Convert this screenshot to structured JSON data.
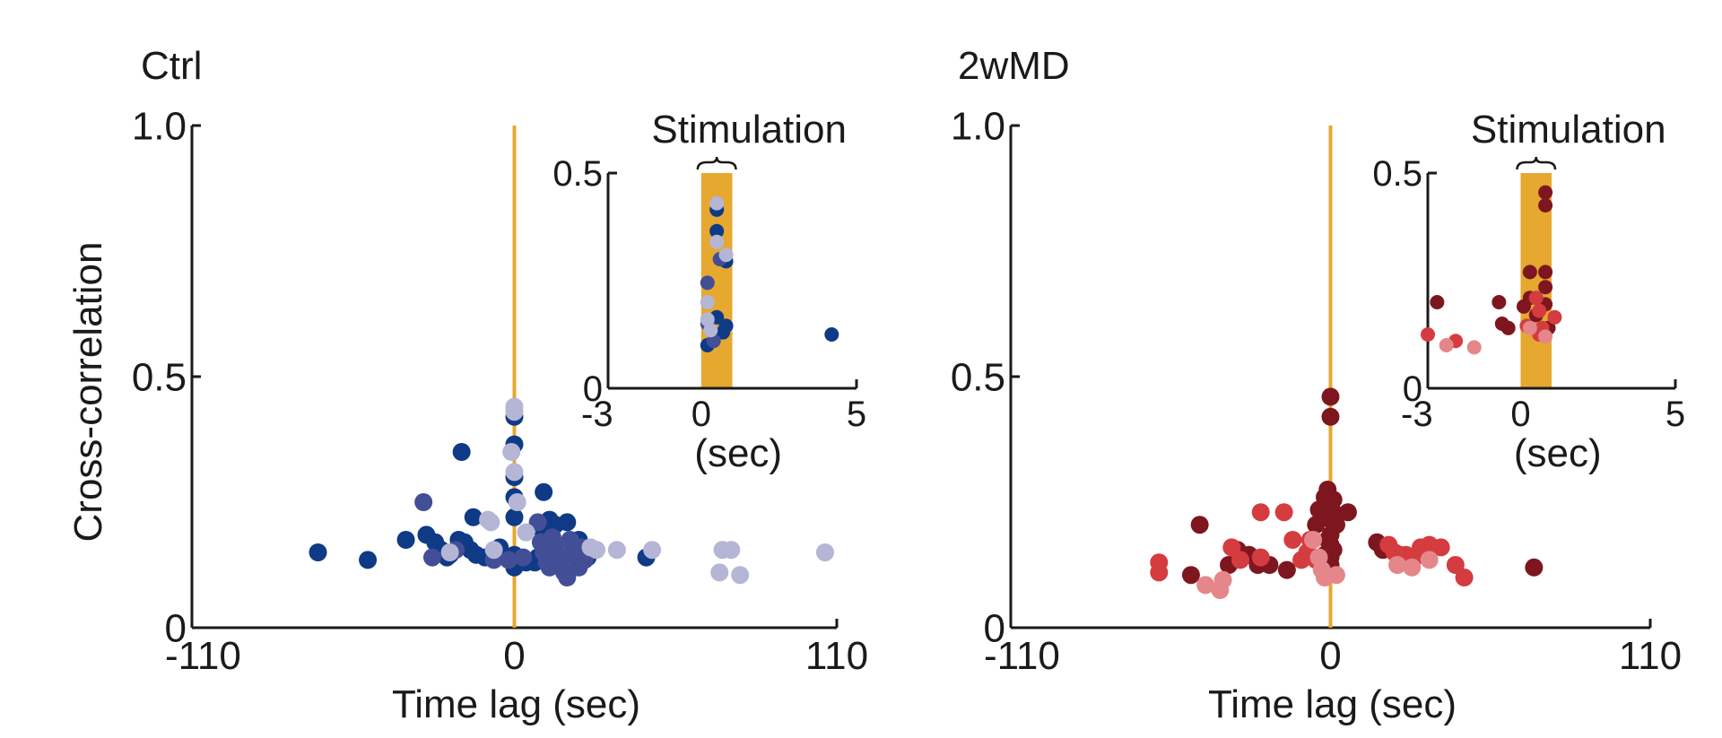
{
  "colors": {
    "stim": "#E6A82E",
    "axis": "#1a1a1a",
    "ctrl_dark": "#0E3A86",
    "ctrl_mid": "#424E96",
    "ctrl_light": "#B5B5D6",
    "md_dark": "#7E1620",
    "md_mid": "#D53C40",
    "md_light": "#E5878A"
  },
  "chart_data": [
    {
      "type": "scatter",
      "title": "Ctrl",
      "xlabel": "Time lag (sec)",
      "ylabel": "Cross-correlation",
      "xlim": [
        -110,
        110
      ],
      "ylim": [
        0,
        1.0
      ],
      "xticks": [
        "-110",
        "0",
        "110"
      ],
      "yticks": [
        "0",
        "0.5",
        "1.0"
      ],
      "stim_line_x": 0,
      "series": [
        {
          "name": "dark",
          "color_key": "ctrl_dark",
          "points": [
            [
              -67,
              0.15
            ],
            [
              -50,
              0.135
            ],
            [
              -37,
              0.175
            ],
            [
              -30,
              0.185
            ],
            [
              -27,
              0.17
            ],
            [
              -25,
              0.155
            ],
            [
              -23,
              0.14
            ],
            [
              -22,
              0.145
            ],
            [
              -19,
              0.175
            ],
            [
              -17,
              0.17
            ],
            [
              -15,
              0.155
            ],
            [
              -13,
              0.145
            ],
            [
              -10,
              0.14
            ],
            [
              -5,
              0.16
            ],
            [
              -18,
              0.35
            ],
            [
              -14,
              0.22
            ],
            [
              0,
              0.42
            ],
            [
              0,
              0.365
            ],
            [
              0,
              0.3
            ],
            [
              0,
              0.26
            ],
            [
              0,
              0.22
            ],
            [
              0,
              0.145
            ],
            [
              0,
              0.13
            ],
            [
              0,
              0.12
            ],
            [
              2,
              0.135
            ],
            [
              4,
              0.13
            ],
            [
              7,
              0.13
            ],
            [
              8,
              0.14
            ],
            [
              10,
              0.27
            ],
            [
              10,
              0.185
            ],
            [
              12,
              0.215
            ],
            [
              14,
              0.205
            ],
            [
              18,
              0.21
            ],
            [
              22,
              0.175
            ],
            [
              25,
              0.14
            ],
            [
              45,
              0.14
            ]
          ]
        },
        {
          "name": "mid",
          "color_key": "ctrl_mid",
          "points": [
            [
              -31,
              0.25
            ],
            [
              -28,
              0.14
            ],
            [
              -20,
              0.155
            ],
            [
              -7,
              0.135
            ],
            [
              -2,
              0.135
            ],
            [
              3,
              0.14
            ],
            [
              8,
              0.21
            ],
            [
              9,
              0.17
            ],
            [
              10,
              0.15
            ],
            [
              11,
              0.13
            ],
            [
              12,
              0.12
            ],
            [
              13,
              0.18
            ],
            [
              14,
              0.16
            ],
            [
              15,
              0.14
            ],
            [
              16,
              0.125
            ],
            [
              17,
              0.11
            ],
            [
              18,
              0.1
            ],
            [
              19,
              0.175
            ],
            [
              20,
              0.155
            ],
            [
              21,
              0.14
            ],
            [
              22,
              0.12
            ],
            [
              23,
              0.16
            ],
            [
              24,
              0.135
            ]
          ]
        },
        {
          "name": "light",
          "color_key": "ctrl_light",
          "points": [
            [
              0,
              0.44
            ],
            [
              0,
              0.43
            ],
            [
              -1,
              0.35
            ],
            [
              0,
              0.31
            ],
            [
              1,
              0.25
            ],
            [
              -9,
              0.215
            ],
            [
              -8,
              0.21
            ],
            [
              -22,
              0.15
            ],
            [
              -7,
              0.155
            ],
            [
              4,
              0.19
            ],
            [
              26,
              0.16
            ],
            [
              28,
              0.155
            ],
            [
              35,
              0.155
            ],
            [
              47,
              0.155
            ],
            [
              71,
              0.155
            ],
            [
              74,
              0.155
            ],
            [
              106,
              0.15
            ],
            [
              70,
              0.11
            ],
            [
              77,
              0.105
            ]
          ]
        }
      ],
      "inset": {
        "title": "Stimulation",
        "xlabel": "(sec)",
        "xlim": [
          -3,
          5
        ],
        "ylim": [
          0,
          0.5
        ],
        "xticks": [
          "-3",
          "0",
          "5"
        ],
        "yticks": [
          "0",
          "0.5"
        ],
        "stim_window": [
          0,
          1
        ],
        "series": [
          {
            "name": "dark",
            "color_key": "ctrl_dark",
            "points": [
              [
                0.5,
                0.415
              ],
              [
                0.5,
                0.365
              ],
              [
                0.8,
                0.295
              ],
              [
                0.5,
                0.165
              ],
              [
                0.7,
                0.13
              ],
              [
                0.8,
                0.145
              ],
              [
                0.2,
                0.1
              ],
              [
                4.2,
                0.125
              ]
            ]
          },
          {
            "name": "mid",
            "color_key": "ctrl_mid",
            "points": [
              [
                0.2,
                0.245
              ],
              [
                0.6,
                0.3
              ],
              [
                0.2,
                0.15
              ],
              [
                0.4,
                0.11
              ]
            ]
          },
          {
            "name": "light",
            "color_key": "ctrl_light",
            "points": [
              [
                0.5,
                0.43
              ],
              [
                0.5,
                0.34
              ],
              [
                0.8,
                0.31
              ],
              [
                0.2,
                0.2
              ],
              [
                0.2,
                0.16
              ],
              [
                0.3,
                0.135
              ]
            ]
          }
        ]
      }
    },
    {
      "type": "scatter",
      "title": "2wMD",
      "xlabel": "Time lag (sec)",
      "ylabel": "",
      "xlim": [
        -110,
        110
      ],
      "ylim": [
        0,
        1.0
      ],
      "xticks": [
        "-110",
        "0",
        "110"
      ],
      "yticks": [
        "0",
        "0.5",
        "1.0"
      ],
      "stim_line_x": 0,
      "series": [
        {
          "name": "dark",
          "color_key": "md_dark",
          "points": [
            [
              0,
              0.46
            ],
            [
              0,
              0.42
            ],
            [
              -1,
              0.275
            ],
            [
              -2,
              0.26
            ],
            [
              1,
              0.255
            ],
            [
              -4,
              0.235
            ],
            [
              1,
              0.23
            ],
            [
              -1,
              0.225
            ],
            [
              0,
              0.215
            ],
            [
              2,
              0.205
            ],
            [
              -5,
              0.205
            ],
            [
              6,
              0.23
            ],
            [
              0,
              0.185
            ],
            [
              -1,
              0.175
            ],
            [
              0,
              0.165
            ],
            [
              1,
              0.155
            ],
            [
              -2,
              0.145
            ],
            [
              0,
              0.14
            ],
            [
              -1,
              0.135
            ],
            [
              0,
              0.125
            ],
            [
              -45,
              0.205
            ],
            [
              -32,
              0.155
            ],
            [
              -28,
              0.145
            ],
            [
              -21,
              0.125
            ],
            [
              -15,
              0.115
            ],
            [
              -25,
              0.125
            ],
            [
              -35,
              0.125
            ],
            [
              -48,
              0.105
            ],
            [
              16,
              0.17
            ],
            [
              18,
              0.155
            ],
            [
              70,
              0.12
            ]
          ]
        },
        {
          "name": "mid",
          "color_key": "md_mid",
          "points": [
            [
              -59,
              0.13
            ],
            [
              -59,
              0.11
            ],
            [
              -34,
              0.16
            ],
            [
              -31,
              0.135
            ],
            [
              -24,
              0.14
            ],
            [
              -13,
              0.175
            ],
            [
              -10,
              0.135
            ],
            [
              -8,
              0.15
            ],
            [
              -5,
              0.135
            ],
            [
              -24,
              0.23
            ],
            [
              -16,
              0.23
            ],
            [
              -7,
              0.175
            ],
            [
              20,
              0.165
            ],
            [
              22,
              0.15
            ],
            [
              24,
              0.145
            ],
            [
              26,
              0.145
            ],
            [
              29,
              0.14
            ],
            [
              31,
              0.16
            ],
            [
              34,
              0.165
            ],
            [
              38,
              0.16
            ],
            [
              43,
              0.125
            ],
            [
              46,
              0.1
            ]
          ]
        },
        {
          "name": "light",
          "color_key": "md_light",
          "points": [
            [
              -38,
              0.075
            ],
            [
              -43,
              0.085
            ],
            [
              -37,
              0.095
            ],
            [
              -6,
              0.175
            ],
            [
              -4,
              0.14
            ],
            [
              -3,
              0.115
            ],
            [
              -2,
              0.1
            ],
            [
              2,
              0.105
            ],
            [
              23,
              0.125
            ],
            [
              34,
              0.135
            ],
            [
              28,
              0.12
            ]
          ]
        }
      ],
      "inset": {
        "title": "Stimulation",
        "xlabel": "(sec)",
        "xlim": [
          -3,
          5
        ],
        "ylim": [
          0,
          0.5
        ],
        "xticks": [
          "-3",
          "0",
          "5"
        ],
        "yticks": [
          "0",
          "0.5"
        ],
        "stim_window": [
          0,
          1
        ],
        "series": [
          {
            "name": "dark",
            "color_key": "md_dark",
            "points": [
              [
                0.8,
                0.455
              ],
              [
                0.8,
                0.425
              ],
              [
                0.3,
                0.27
              ],
              [
                0.8,
                0.27
              ],
              [
                0.8,
                0.235
              ],
              [
                0.3,
                0.21
              ],
              [
                -0.7,
                0.2
              ],
              [
                0.8,
                0.195
              ],
              [
                0.1,
                0.19
              ],
              [
                0.5,
                0.17
              ],
              [
                -0.6,
                0.15
              ],
              [
                -0.4,
                0.14
              ],
              [
                0.9,
                0.14
              ],
              [
                -2.7,
                0.2
              ]
            ]
          },
          {
            "name": "mid",
            "color_key": "md_mid",
            "points": [
              [
                -3,
                0.125
              ],
              [
                -2.1,
                0.11
              ],
              [
                0.2,
                0.145
              ],
              [
                0.7,
                0.14
              ],
              [
                1.1,
                0.165
              ],
              [
                0.6,
                0.18
              ],
              [
                0.5,
                0.21
              ],
              [
                0.6,
                0.125
              ]
            ]
          },
          {
            "name": "light",
            "color_key": "md_light",
            "points": [
              [
                -1.5,
                0.095
              ],
              [
                -2.4,
                0.1
              ],
              [
                0.3,
                0.14
              ],
              [
                0.8,
                0.12
              ]
            ]
          }
        ]
      }
    }
  ]
}
